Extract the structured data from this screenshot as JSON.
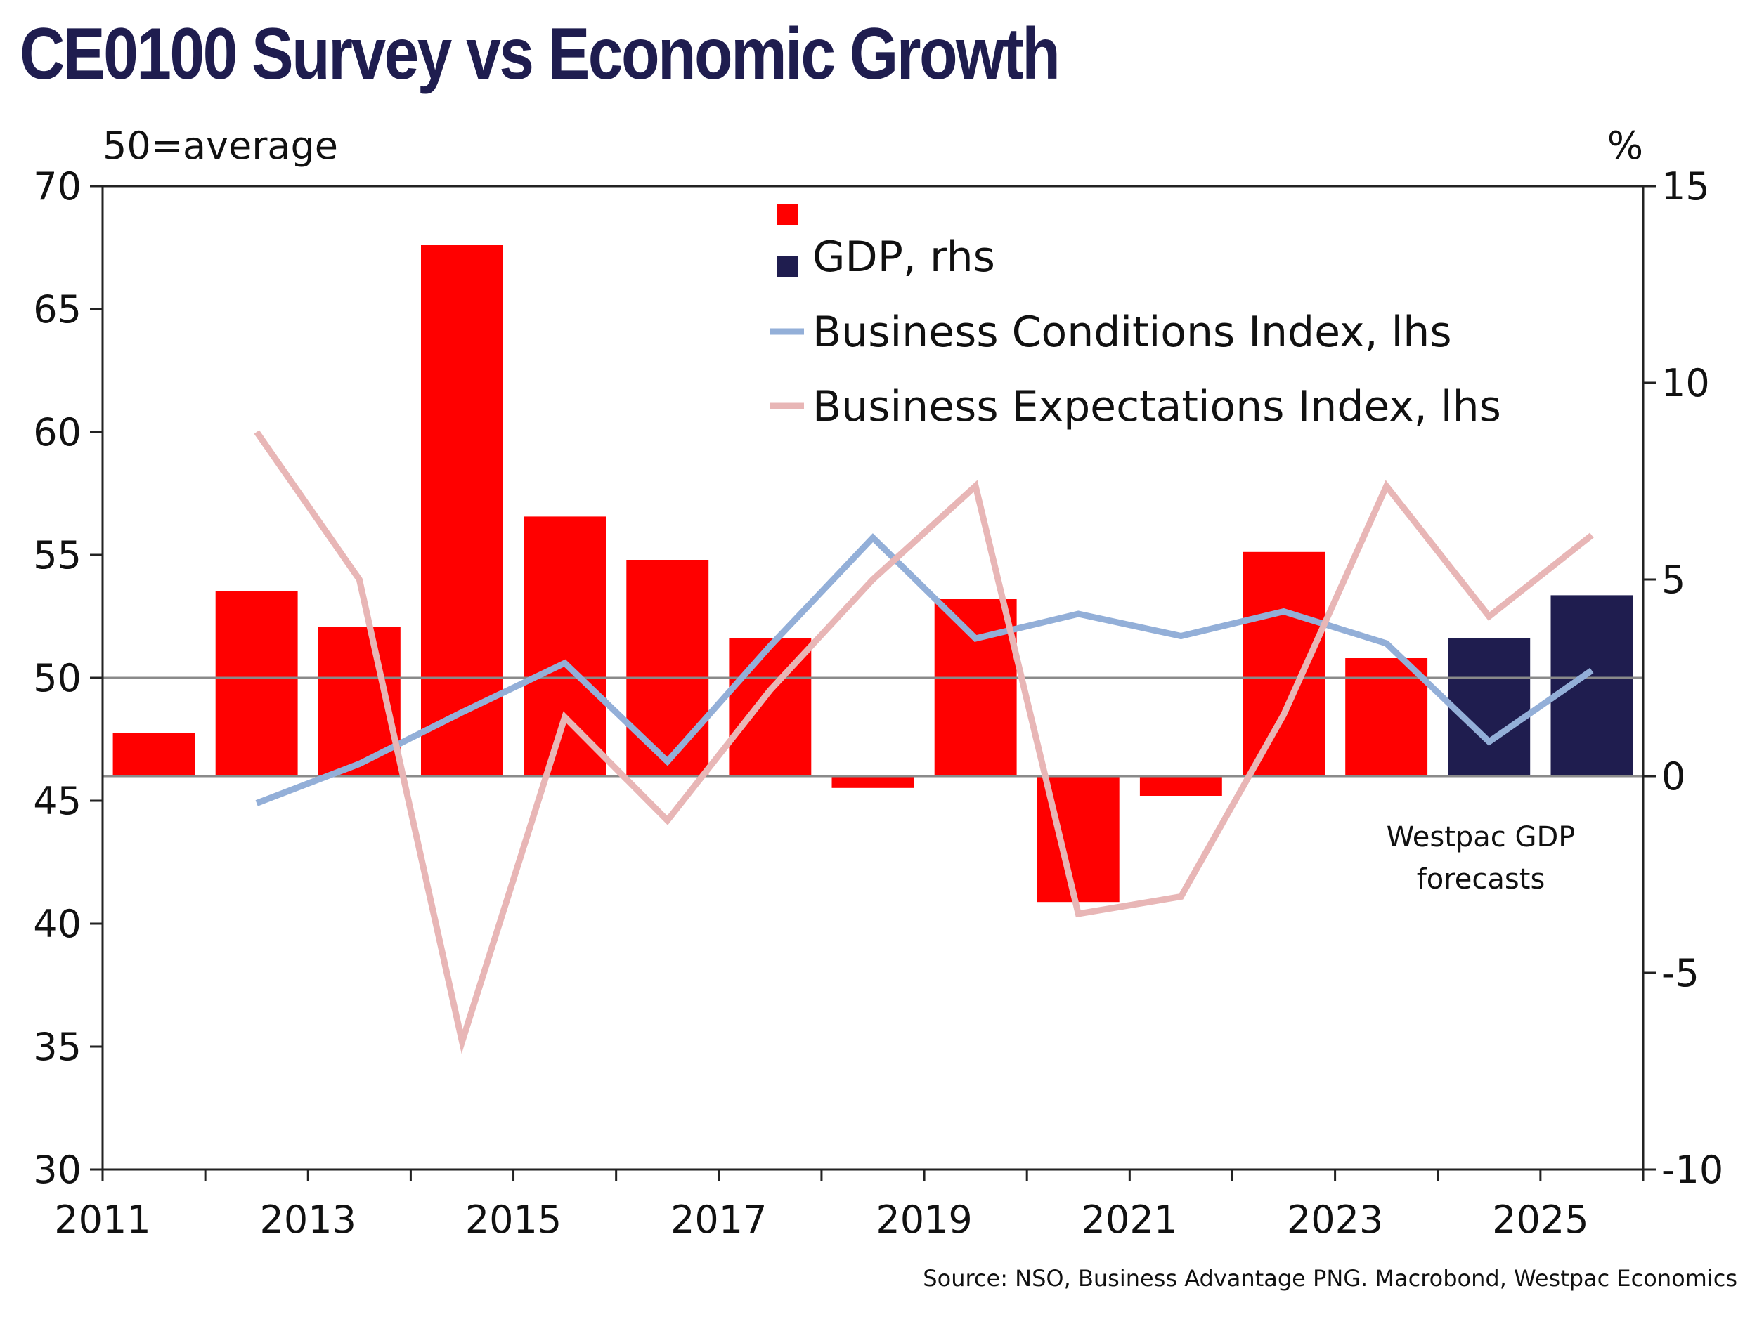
{
  "title": "CE0100 Survey vs Economic Growth",
  "source": "Source: NSO, Business Advantage PNG. Macrobond, Westpac Economics",
  "chart_data": {
    "type": "bar",
    "title": "CE0100 Survey vs Economic Growth",
    "left_axis": {
      "unit_label": "50=average",
      "range": [
        30,
        70
      ],
      "ticks": [
        30,
        35,
        40,
        45,
        50,
        55,
        60,
        65,
        70
      ]
    },
    "right_axis": {
      "unit_label": "%",
      "range": [
        -10,
        15
      ],
      "ticks": [
        -10,
        -5,
        0,
        5,
        10,
        15
      ]
    },
    "x_axis": {
      "range": [
        2011,
        2026
      ],
      "tick_labels": [
        "2011",
        "2013",
        "2015",
        "2017",
        "2019",
        "2021",
        "2023",
        "2025"
      ]
    },
    "reference_line": {
      "axis": "left",
      "value": 50
    },
    "legend": [
      "GDP, rhs",
      "Business Conditions Index, lhs",
      "Business Expectations Index, lhs"
    ],
    "legend_position": "top-right",
    "annotation": [
      "Westpac GDP",
      "forecasts"
    ],
    "gdp": {
      "name": "GDP, rhs",
      "axis": "right",
      "years": [
        2011,
        2012,
        2013,
        2014,
        2015,
        2016,
        2017,
        2018,
        2019,
        2020,
        2021,
        2022,
        2023,
        2024,
        2025
      ],
      "values": [
        1.1,
        4.7,
        3.8,
        13.5,
        6.6,
        5.5,
        3.5,
        -0.3,
        4.5,
        -3.2,
        -0.5,
        5.7,
        3.0,
        3.5,
        4.6
      ],
      "forecast": [
        false,
        false,
        false,
        false,
        false,
        false,
        false,
        false,
        false,
        false,
        false,
        false,
        false,
        true,
        true
      ],
      "colors": {
        "actual": "#ff0000",
        "forecast": "#1f1d4f"
      }
    },
    "series": [
      {
        "name": "Business Conditions Index, lhs",
        "axis": "left",
        "color": "#93afd8",
        "x": [
          2012.5,
          2013.5,
          2014.5,
          2015.5,
          2016.5,
          2017.5,
          2018.5,
          2019.5,
          2020.5,
          2021.5,
          2022.5,
          2023.5,
          2024.5,
          2025.5
        ],
        "values": [
          44.9,
          46.5,
          48.6,
          50.6,
          46.6,
          51.3,
          55.7,
          51.6,
          52.6,
          51.7,
          52.7,
          51.4,
          47.4,
          50.3
        ]
      },
      {
        "name": "Business Expectations Index, lhs",
        "axis": "left",
        "color": "#e8b6b6",
        "x": [
          2012.5,
          2013.5,
          2014.5,
          2015.5,
          2016.5,
          2017.5,
          2018.5,
          2019.5,
          2020.5,
          2021.5,
          2022.5,
          2023.5,
          2024.5,
          2025.5
        ],
        "values": [
          60.0,
          54.0,
          35.2,
          48.4,
          44.2,
          49.5,
          54.0,
          57.8,
          40.4,
          41.1,
          48.5,
          57.8,
          52.5,
          55.8
        ]
      }
    ]
  }
}
